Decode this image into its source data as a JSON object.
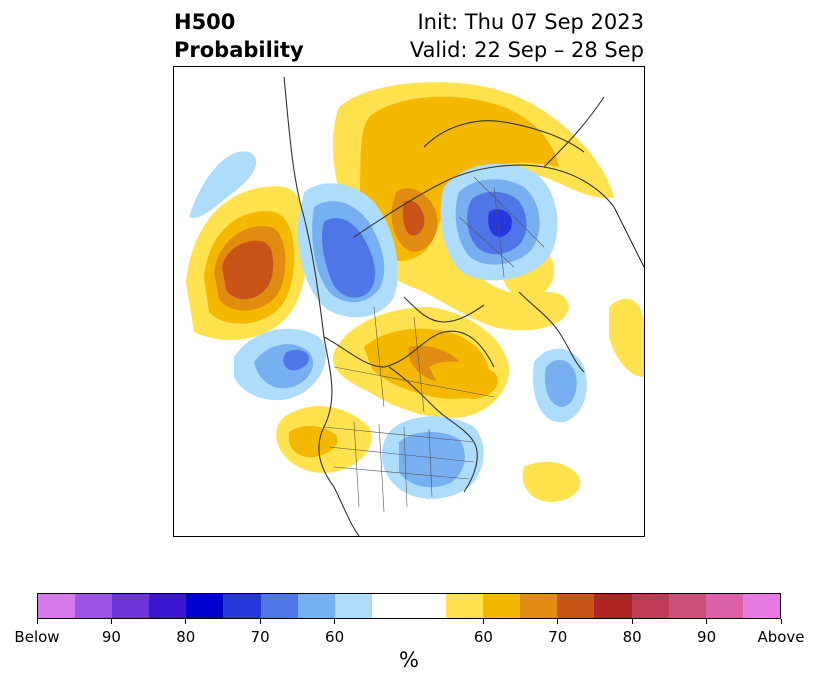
{
  "title": {
    "line1_left": "H500",
    "line2_left": "Probability",
    "line1_right": "Init: Thu 07 Sep 2023",
    "line2_right": "Valid: 22 Sep – 28 Sep"
  },
  "colorbar": {
    "unit": "%",
    "colors": [
      "#d77ae9",
      "#9b55e2",
      "#6c35d9",
      "#3a18d2",
      "#0000cc",
      "#2638dc",
      "#4f76e6",
      "#77b0f1",
      "#aedcfb",
      "#ffffff",
      "#ffffff",
      "#ffe24d",
      "#f5b800",
      "#e08c10",
      "#c8541a",
      "#b02424",
      "#c03a55",
      "#cc507c",
      "#db60a8",
      "#e67ae0"
    ],
    "labels": [
      "Below",
      "90",
      "80",
      "70",
      "60",
      "60",
      "70",
      "80",
      "90",
      "Above"
    ]
  },
  "map": {
    "projection": "polar stereographic (North America)",
    "anomaly_colors": {
      "above_60": "#ffe24d",
      "above_65": "#f5b800",
      "above_70": "#e08c10",
      "above_75": "#c8541a",
      "below_60": "#aedcfb",
      "below_65": "#77b0f1",
      "below_70": "#4f76e6",
      "below_75": "#2638dc"
    }
  }
}
